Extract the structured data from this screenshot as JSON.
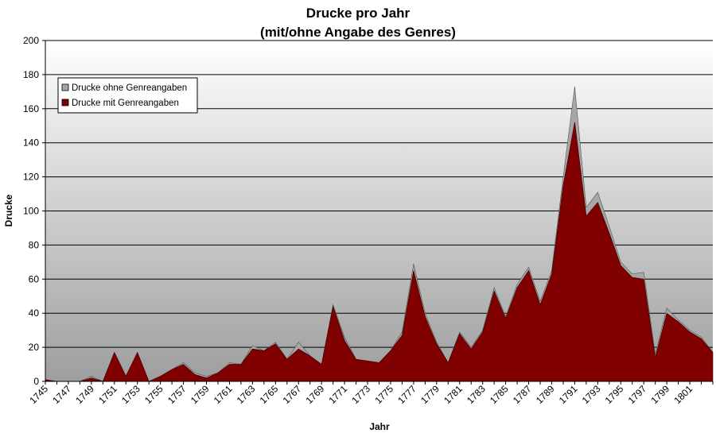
{
  "chart_data": {
    "type": "area",
    "title": "Drucke pro Jahr",
    "subtitle": "(mit/ohne Angabe des Genres)",
    "xlabel": "Jahr",
    "ylabel": "Drucke",
    "ylim": [
      0,
      200
    ],
    "yticks": [
      0,
      20,
      40,
      60,
      80,
      100,
      120,
      140,
      160,
      180,
      200
    ],
    "xticks": [
      "1745",
      "1747",
      "1749",
      "1751",
      "1753",
      "1755",
      "1757",
      "1759",
      "1761",
      "1763",
      "1765",
      "1767",
      "1769",
      "1771",
      "1773",
      "1775",
      "1777",
      "1779",
      "1781",
      "1783",
      "1785",
      "1787",
      "1789",
      "1791",
      "1793",
      "1795",
      "1797",
      "1799",
      "1801"
    ],
    "grid": true,
    "stacked": true,
    "legend_position": "top-left",
    "x": [
      1745,
      1746,
      1747,
      1748,
      1749,
      1750,
      1751,
      1752,
      1753,
      1754,
      1755,
      1756,
      1757,
      1758,
      1759,
      1760,
      1761,
      1762,
      1763,
      1764,
      1765,
      1766,
      1767,
      1768,
      1769,
      1770,
      1771,
      1772,
      1773,
      1774,
      1775,
      1776,
      1777,
      1778,
      1779,
      1780,
      1781,
      1782,
      1783,
      1784,
      1785,
      1786,
      1787,
      1788,
      1789,
      1790,
      1791,
      1792,
      1793,
      1794,
      1795,
      1796,
      1797,
      1798,
      1799,
      1800,
      1801,
      1802,
      1803
    ],
    "series": [
      {
        "name": "Drucke mit Genreangaben",
        "color": "#800000",
        "values": [
          1,
          0,
          0,
          0,
          2,
          0,
          17,
          3,
          17,
          0,
          3,
          7,
          10,
          4,
          2,
          5,
          10,
          10,
          19,
          18,
          22,
          13,
          19,
          15,
          10,
          44,
          24,
          13,
          12,
          11,
          18,
          27,
          65,
          38,
          22,
          11,
          28,
          19,
          29,
          53,
          37,
          55,
          65,
          45,
          63,
          115,
          152,
          97,
          105,
          87,
          68,
          61,
          60,
          14,
          40,
          35,
          29,
          25,
          17
        ]
      },
      {
        "name": "Drucke ohne Genreangaben",
        "color": "#a6a6a6",
        "values": [
          0,
          0,
          0,
          0,
          1,
          0,
          0,
          0,
          0,
          0,
          0,
          0,
          1,
          1,
          1,
          0,
          1,
          0,
          2,
          0,
          1,
          0,
          4,
          0,
          0,
          1,
          2,
          0,
          0,
          0,
          0,
          2,
          4,
          2,
          1,
          0,
          1,
          1,
          1,
          2,
          1,
          2,
          2,
          2,
          2,
          5,
          21,
          5,
          6,
          4,
          2,
          2,
          4,
          2,
          3,
          1,
          1,
          1,
          0
        ]
      }
    ]
  }
}
